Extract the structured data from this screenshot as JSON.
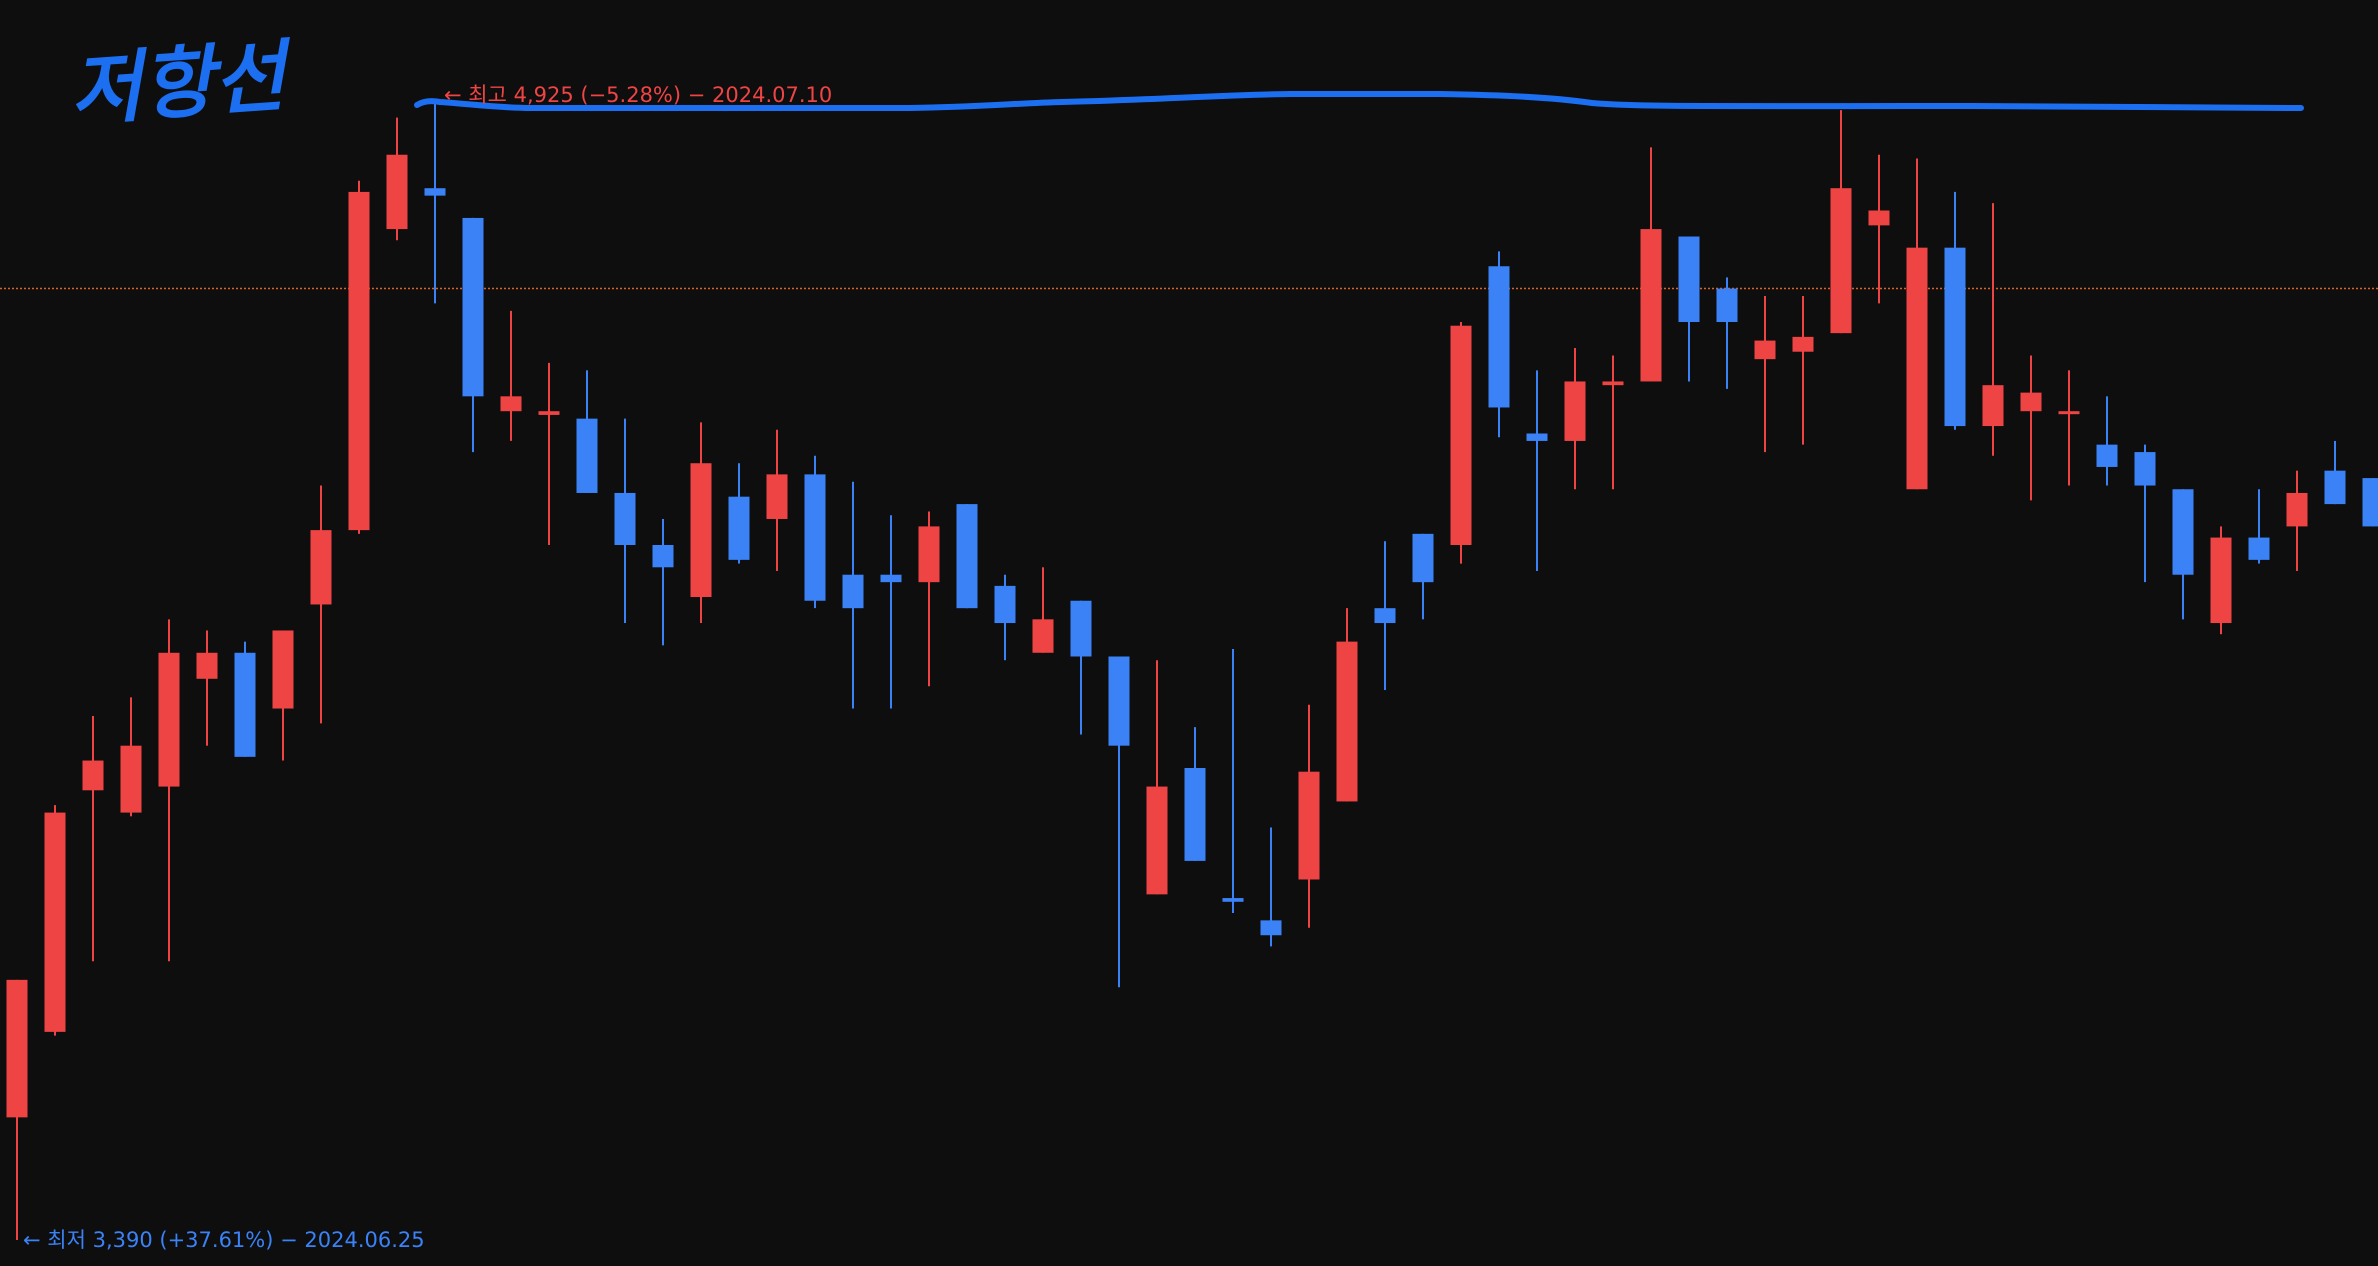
{
  "chart_data": {
    "type": "candlestick",
    "title": "저항선",
    "high_label": "← 최고 4,925 (−5.28%) − 2024.07.10",
    "low_label": "← 최저 3,390 (+37.61%) − 2024.06.25",
    "up_color": "#ef4444",
    "down_color": "#3b82f6",
    "price_line": 4670,
    "price_line_color": "#d9622b",
    "open": [
      3555,
      3670,
      3995,
      3965,
      4000,
      4145,
      4180,
      4105,
      4245,
      4345,
      4750,
      4805,
      4765,
      4505,
      4500,
      4495,
      4395,
      4325,
      4255,
      4390,
      4360,
      4420,
      4285,
      4285,
      4275,
      4380,
      4270,
      4180,
      4250,
      4175,
      3855,
      4025,
      3850,
      3820,
      3875,
      3980,
      4240,
      4340,
      4325,
      4700,
      4475,
      4465,
      4540,
      4545,
      4740,
      4670,
      4575,
      4585,
      4610,
      4755,
      4400,
      4725,
      4485,
      4505,
      4505,
      4460,
      4450,
      4400,
      4220,
      4335,
      4350,
      4425,
      4415
    ],
    "close": [
      3740,
      3965,
      4035,
      4055,
      4180,
      4180,
      4040,
      4210,
      4345,
      4800,
      4850,
      4795,
      4525,
      4525,
      4505,
      4395,
      4325,
      4295,
      4435,
      4305,
      4420,
      4250,
      4240,
      4275,
      4350,
      4240,
      4220,
      4225,
      4175,
      4055,
      4000,
      3900,
      3845,
      3800,
      4020,
      4195,
      4220,
      4275,
      4620,
      4510,
      4465,
      4545,
      4545,
      4750,
      4625,
      4625,
      4600,
      4605,
      4805,
      4775,
      4725,
      4485,
      4540,
      4530,
      4505,
      4430,
      4405,
      4285,
      4335,
      4305,
      4395,
      4380,
      4350
    ],
    "high": [
      3740,
      3975,
      4095,
      4120,
      4225,
      4210,
      4195,
      4210,
      4405,
      4815,
      4900,
      4925,
      4765,
      4640,
      4570,
      4560,
      4495,
      4360,
      4490,
      4435,
      4480,
      4445,
      4410,
      4365,
      4370,
      4380,
      4285,
      4295,
      4250,
      4175,
      4170,
      4080,
      4185,
      3945,
      4110,
      4240,
      4330,
      4340,
      4625,
      4720,
      4560,
      4590,
      4580,
      4860,
      4740,
      4685,
      4660,
      4660,
      4910,
      4850,
      4845,
      4800,
      4785,
      4580,
      4560,
      4525,
      4460,
      4400,
      4350,
      4400,
      4425,
      4465,
      4415
    ],
    "low": [
      3390,
      3665,
      3765,
      3960,
      3765,
      4055,
      4040,
      4035,
      4085,
      4340,
      4735,
      4650,
      4450,
      4465,
      4325,
      4395,
      4220,
      4190,
      4220,
      4300,
      4290,
      4240,
      4105,
      4105,
      4135,
      4240,
      4170,
      4180,
      4070,
      3730,
      3855,
      3900,
      3830,
      3785,
      3810,
      3980,
      4130,
      4225,
      4300,
      4470,
      4290,
      4400,
      4400,
      4545,
      4545,
      4535,
      4450,
      4460,
      4610,
      4650,
      4400,
      4480,
      4445,
      4385,
      4405,
      4405,
      4275,
      4225,
      4205,
      4300,
      4290,
      4380,
      4350
    ]
  }
}
